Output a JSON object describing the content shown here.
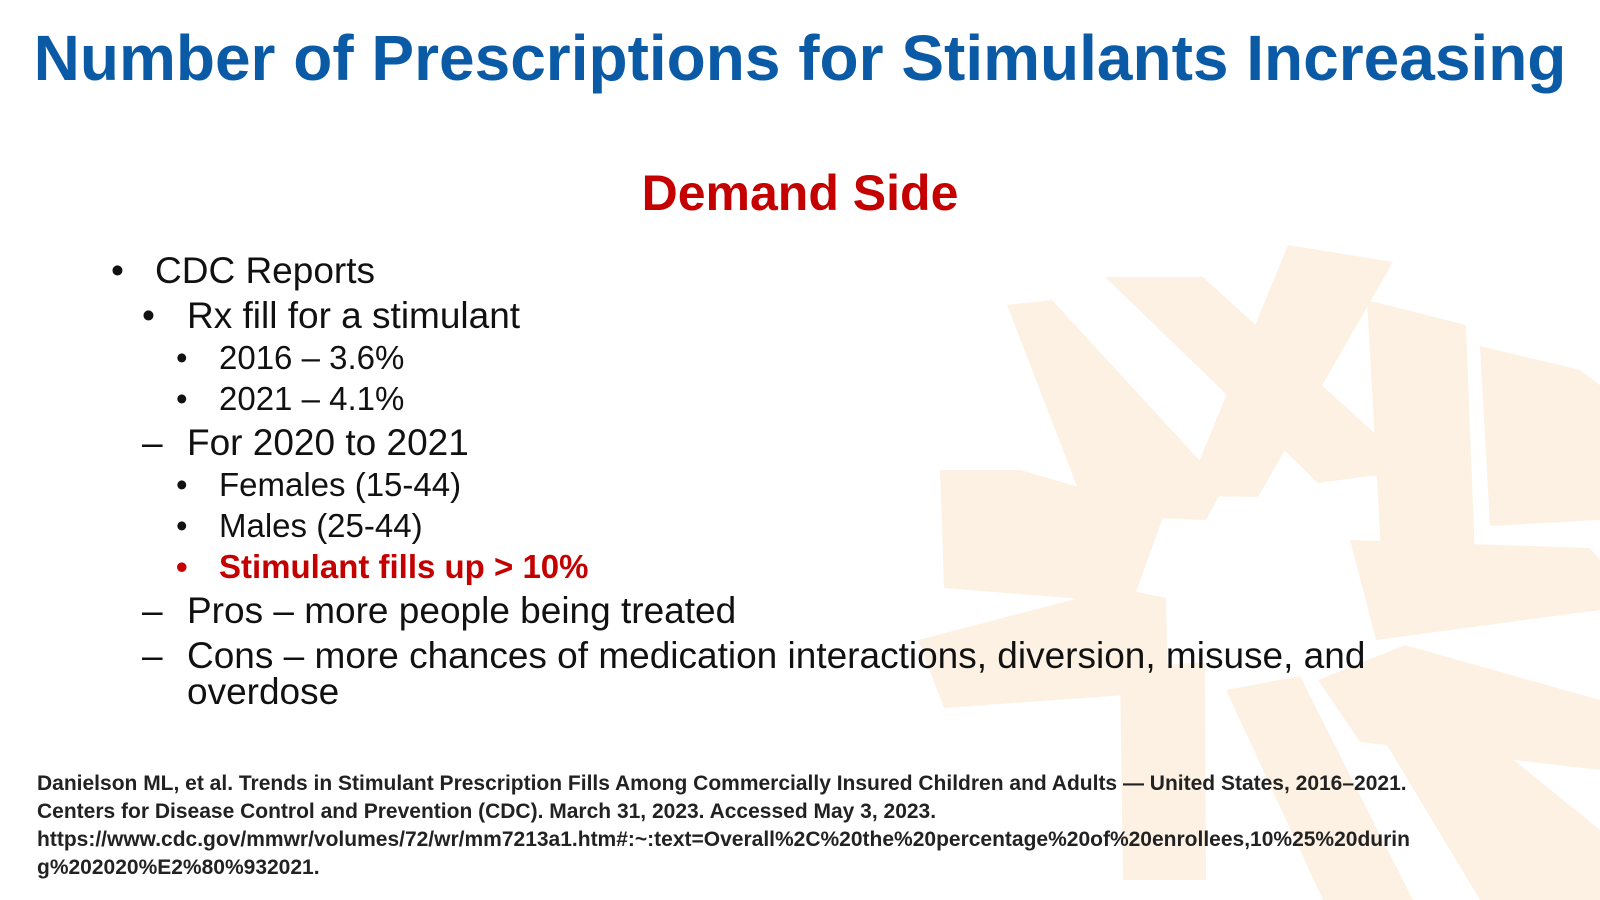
{
  "slide": {
    "title": "Number of Prescriptions for Stimulants Increasing",
    "subtitle": "Demand Side"
  },
  "bullets": {
    "l1": {
      "marker": "•",
      "text": "CDC Reports"
    },
    "rx": {
      "marker": "•",
      "text": "Rx fill for a stimulant"
    },
    "y2016": {
      "marker": "•",
      "text": "2016 – 3.6%"
    },
    "y2021": {
      "marker": "•",
      "text": "2021 – 4.1%"
    },
    "period": {
      "marker": "–",
      "text": "For 2020 to 2021"
    },
    "females": {
      "marker": "•",
      "text": "Females (15-44)"
    },
    "males": {
      "marker": "•",
      "text": "Males (25-44)"
    },
    "fills": {
      "marker": "•",
      "text": "Stimulant fills up > 10%"
    },
    "pros": {
      "marker": "–",
      "text": "Pros – more people being treated"
    },
    "cons": {
      "marker": "–",
      "line1": "Cons – more chances of medication interactions, diversion, misuse, and",
      "line2": "overdose"
    }
  },
  "citation": {
    "line1": "Danielson ML, et al. Trends in Stimulant Prescription Fills Among Commercially Insured Children and Adults — United States, 2016–2021.",
    "line2": "Centers for Disease Control and Prevention (CDC). March 31, 2023. Accessed May 3, 2023.",
    "line3": "https://www.cdc.gov/mmwr/volumes/72/wr/mm7213a1.htm#:~:text=Overall%2C%20the%20percentage%20of%20enrollees,10%25%20durin",
    "line4": "g%202020%E2%80%932021."
  },
  "colors": {
    "title": "#0b5aa6",
    "accent_red": "#c40000",
    "watermark": "#fdf1e4"
  },
  "icons": {
    "watermark": "starburst-logo-icon"
  }
}
